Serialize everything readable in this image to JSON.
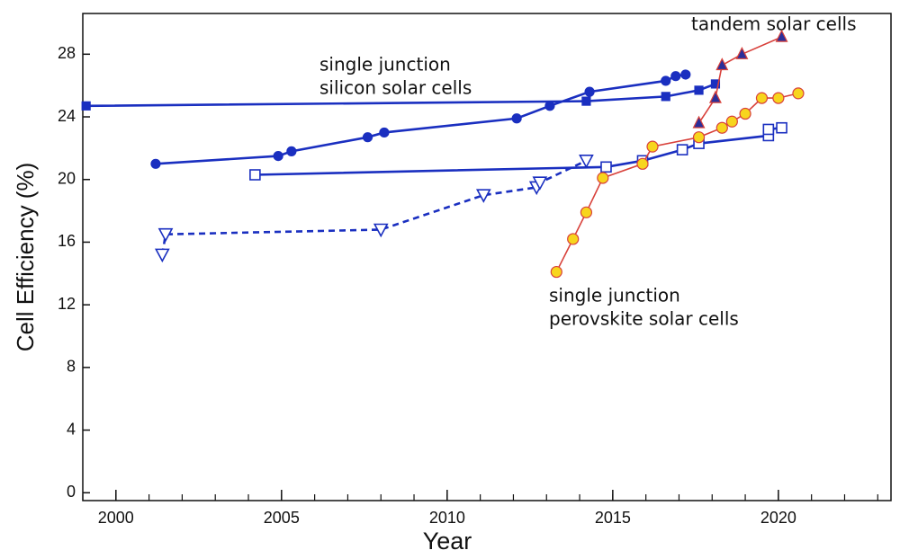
{
  "chart_data": {
    "type": "line",
    "xlabel": "Year",
    "ylabel": "Cell Efficiency (%)",
    "xlim": [
      1999,
      2023.4
    ],
    "ylim": [
      -0.5,
      30.6
    ],
    "xticks": [
      2000,
      2005,
      2010,
      2015,
      2020
    ],
    "yticks": [
      0,
      4,
      8,
      12,
      16,
      20,
      24,
      28
    ],
    "annotations": [
      "single junction",
      "silicon solar cells",
      "tandem solar cells",
      "single junction",
      "perovskite solar cells"
    ],
    "series": [
      {
        "color": "#1a2fc0",
        "marker": "square",
        "marker_fill": "#1a2fc0",
        "dashed": false,
        "x": [
          1999.1,
          2014.2,
          2016.6,
          2017.6,
          2018.1
        ],
        "values": [
          24.7,
          25.0,
          25.3,
          25.7,
          26.1
        ]
      },
      {
        "color": "#1a2fc0",
        "marker": "circle",
        "marker_fill": "#1a2fc0",
        "dashed": false,
        "x": [
          2001.2,
          2004.9,
          2005.3,
          2007.6,
          2008.1,
          2012.1,
          2013.1,
          2014.3,
          2016.6,
          2016.9,
          2017.2
        ],
        "values": [
          21.0,
          21.5,
          21.8,
          22.7,
          23.0,
          23.9,
          24.7,
          25.6,
          26.3,
          26.6,
          26.7
        ]
      },
      {
        "color": "#1a2fc0",
        "marker": "square",
        "marker_fill": "#ffffff",
        "dashed": false,
        "x": [
          2004.2,
          2014.8,
          2015.9,
          2017.1,
          2017.6,
          2019.7,
          2019.7,
          2020.1
        ],
        "values": [
          20.3,
          20.8,
          21.2,
          21.9,
          22.3,
          22.8,
          23.2,
          23.3
        ]
      },
      {
        "color": "#1a2fc0",
        "marker": "triangle-down",
        "marker_fill": "#ffffff",
        "dashed": true,
        "x": [
          2001.4,
          2001.5,
          2008.0,
          2011.1,
          2012.7,
          2012.8,
          2014.2
        ],
        "values": [
          15.2,
          16.5,
          16.8,
          19.0,
          19.5,
          19.8,
          21.2
        ]
      },
      {
        "color": "#d8403a",
        "marker": "circle",
        "marker_fill": "#f7d51d",
        "dashed": false,
        "x": [
          2013.3,
          2013.8,
          2014.2,
          2014.7,
          2015.9,
          2016.2,
          2017.6,
          2018.3,
          2018.6,
          2019.0,
          2019.5,
          2020.0,
          2020.6
        ],
        "values": [
          14.1,
          16.2,
          17.9,
          20.1,
          21.0,
          22.1,
          22.7,
          23.3,
          23.7,
          24.2,
          25.2,
          25.2,
          25.5
        ]
      },
      {
        "color": "#d8403a",
        "marker": "triangle-up",
        "marker_fill": "#2a2f9a",
        "dashed": false,
        "x": [
          2017.6,
          2018.1,
          2018.3,
          2018.9,
          2020.1
        ],
        "values": [
          23.6,
          25.2,
          27.3,
          28.0,
          29.1
        ]
      }
    ]
  }
}
